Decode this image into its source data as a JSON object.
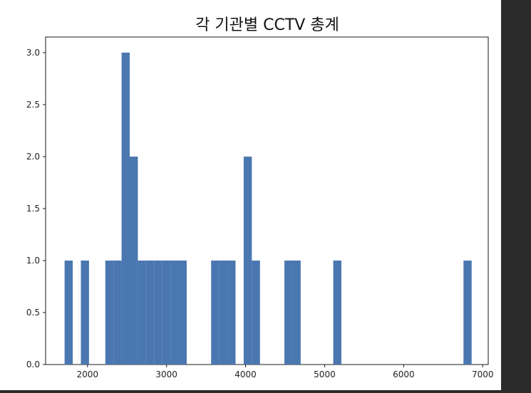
{
  "chart_data": {
    "type": "bar",
    "title": "각 기관별 CCTV 총계",
    "xlabel": "",
    "ylabel": "",
    "xlim": [
      1470,
      7070
    ],
    "ylim": [
      0,
      3.15
    ],
    "xticks": [
      2000,
      3000,
      4000,
      5000,
      6000,
      7000
    ],
    "yticks": [
      0.0,
      0.5,
      1.0,
      1.5,
      2.0,
      2.5,
      3.0
    ],
    "xtick_labels": [
      "2000",
      "3000",
      "4000",
      "5000",
      "6000",
      "7000"
    ],
    "ytick_labels": [
      "0.0",
      "0.5",
      "1.0",
      "1.5",
      "2.0",
      "2.5",
      "3.0"
    ],
    "bin_width": 103,
    "bins": [
      {
        "x_start": 1710,
        "count": 1
      },
      {
        "x_start": 1916,
        "count": 1
      },
      {
        "x_start": 2225,
        "count": 1
      },
      {
        "x_start": 2328,
        "count": 1
      },
      {
        "x_start": 2431,
        "count": 3
      },
      {
        "x_start": 2534,
        "count": 2
      },
      {
        "x_start": 2637,
        "count": 1
      },
      {
        "x_start": 2740,
        "count": 1
      },
      {
        "x_start": 2843,
        "count": 1
      },
      {
        "x_start": 2946,
        "count": 1
      },
      {
        "x_start": 3049,
        "count": 1
      },
      {
        "x_start": 3152,
        "count": 1
      },
      {
        "x_start": 3564,
        "count": 1
      },
      {
        "x_start": 3667,
        "count": 1
      },
      {
        "x_start": 3770,
        "count": 1
      },
      {
        "x_start": 3976,
        "count": 2
      },
      {
        "x_start": 4079,
        "count": 1
      },
      {
        "x_start": 4491,
        "count": 1
      },
      {
        "x_start": 4594,
        "count": 1
      },
      {
        "x_start": 5109,
        "count": 1
      },
      {
        "x_start": 6757,
        "count": 1
      }
    ],
    "bar_color": "#4a77b0",
    "grid": false,
    "legend": "none"
  }
}
